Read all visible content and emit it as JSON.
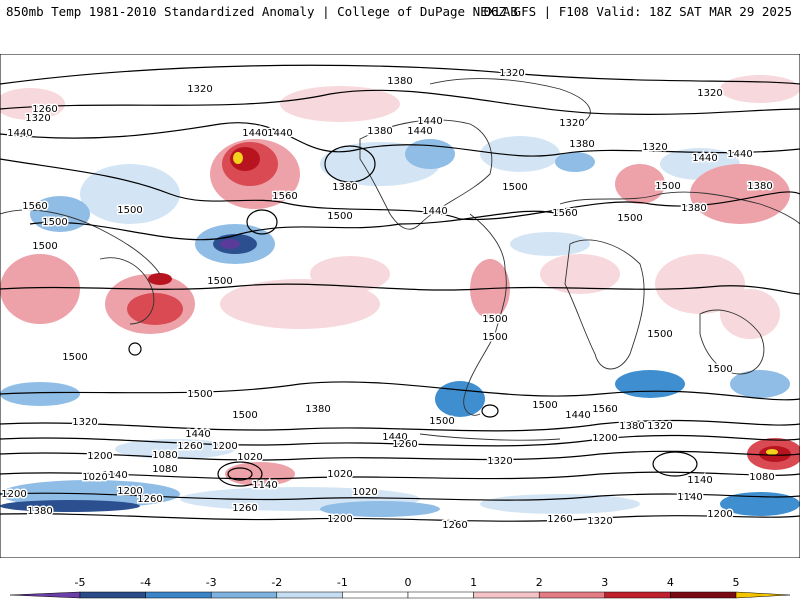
{
  "header": {
    "title_left": "850mb Temp 1981-2010 Standardized Anomaly | College of DuPage NEXLAB",
    "title_right": "06Z GFS | F108 Valid: 18Z SAT MAR 29 2025"
  },
  "map": {
    "contour_labels": [
      "1320",
      "1260",
      "1320",
      "1440",
      "1380",
      "1320",
      "1440",
      "1380",
      "1320",
      "1440",
      "1440",
      "1380",
      "1320",
      "1440",
      "1320",
      "1440",
      "1500",
      "1560",
      "1380",
      "1500",
      "1500",
      "1440",
      "1560",
      "1500",
      "1380",
      "1500",
      "1560",
      "1500",
      "1500",
      "1500",
      "1500",
      "1500",
      "1500",
      "1500",
      "1500",
      "1500",
      "1500",
      "1500",
      "1500",
      "1380",
      "1440",
      "1560",
      "1440",
      "1380",
      "1320",
      "1320",
      "1440",
      "1440",
      "1260",
      "1380",
      "1200",
      "1260",
      "1200",
      "1080",
      "1140",
      "1020",
      "1080",
      "1020",
      "1140",
      "1020",
      "1200",
      "1320",
      "1140",
      "1080",
      "1020",
      "1200",
      "1260",
      "1200",
      "1200",
      "1260",
      "1320",
      "1380",
      "1140",
      "1260",
      "1200",
      "1260"
    ],
    "colors": {
      "neg5": "#5b3b99",
      "neg4": "#2b4f8f",
      "neg3": "#3f8fd0",
      "neg2": "#8fbde6",
      "neg1": "#d3e5f5",
      "pos1": "#f7d8dc",
      "pos2": "#eda1a8",
      "pos3": "#d94a52",
      "pos4": "#b8141f",
      "pos5": "#f2d21b"
    }
  },
  "colorbar": {
    "ticks": [
      "-5",
      "-4",
      "-3",
      "-2",
      "-1",
      "0",
      "1",
      "2",
      "3",
      "4",
      "5"
    ],
    "colors": [
      "#6c3fa8",
      "#2a4a88",
      "#3b84c8",
      "#7fb1de",
      "#c6ddf1",
      "#ffffff",
      "#ffffff",
      "#f3c3c8",
      "#e27b84",
      "#c0222d",
      "#7a0a14",
      "#f5c400"
    ]
  }
}
